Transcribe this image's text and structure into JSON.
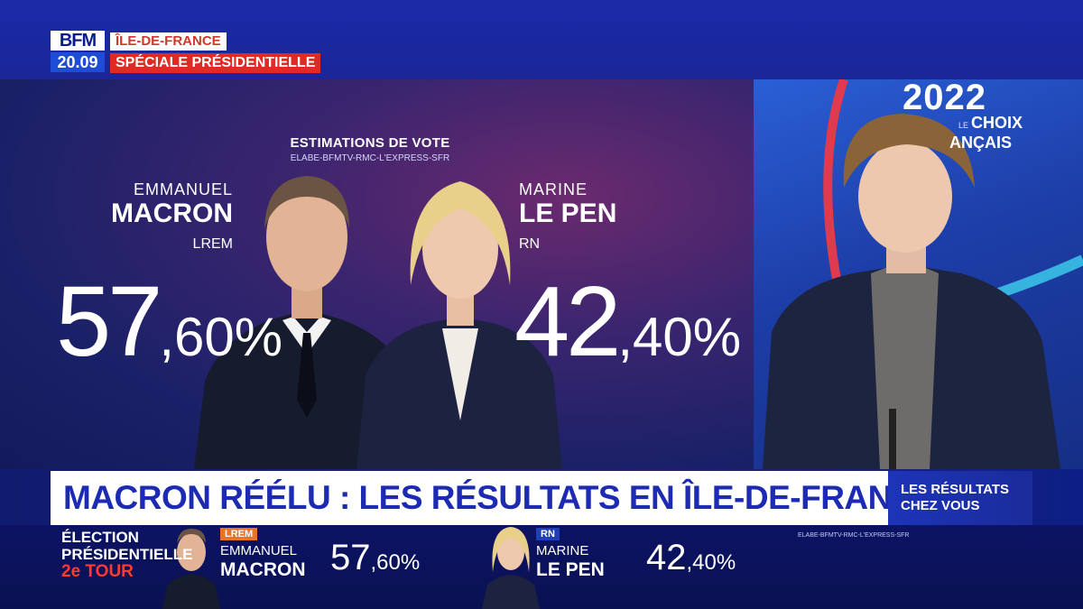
{
  "header": {
    "logo_brand": "BFM",
    "logo_time": "20.09",
    "region_tag": "ÎLE-DE-FRANCE",
    "special_tag": "SPÉCIALE PRÉSIDENTIELLE"
  },
  "graphic": {
    "title": "ESTIMATIONS DE VOTE",
    "source": "ELABE-BFMTV-RMC-L'EXPRESS-SFR",
    "candidates": [
      {
        "first_name": "EMMANUEL",
        "last_name": "MACRON",
        "party": "LREM",
        "pct_int": "57",
        "pct_dec": ",60%"
      },
      {
        "first_name": "MARINE",
        "last_name": "LE PEN",
        "party": "RN",
        "pct_int": "42",
        "pct_dec": ",40%"
      }
    ]
  },
  "studio": {
    "year": "2022",
    "le": "LE",
    "choix": "CHOIX",
    "francais": "ANÇAIS"
  },
  "headline": "MACRON RÉÉLU : LES RÉSULTATS EN ÎLE-DE-FRANCE",
  "side_promo": {
    "line1": "LES RÉSULTATS",
    "line2": "CHEZ VOUS"
  },
  "ticker": {
    "title_line1": "ÉLECTION",
    "title_line2": "PRÉSIDENTIELLE",
    "tour": "2e TOUR",
    "source": "ELABE-BFMTV-RMC-L'EXPRESS-SFR",
    "candidates": [
      {
        "party": "LREM",
        "party_color": "#e8742a",
        "first_name": "EMMANUEL",
        "last_name": "MACRON",
        "pct_int": "57",
        "pct_dec": ",60%"
      },
      {
        "party": "RN",
        "party_color": "#1d3fb8",
        "first_name": "MARINE",
        "last_name": "LE PEN",
        "pct_int": "42",
        "pct_dec": ",40%"
      }
    ]
  },
  "chart_data": {
    "type": "bar",
    "categories": [
      "EMMANUEL MACRON",
      "MARINE LE PEN"
    ],
    "values": [
      57.6,
      42.4
    ],
    "title": "ESTIMATIONS DE VOTE"
  }
}
